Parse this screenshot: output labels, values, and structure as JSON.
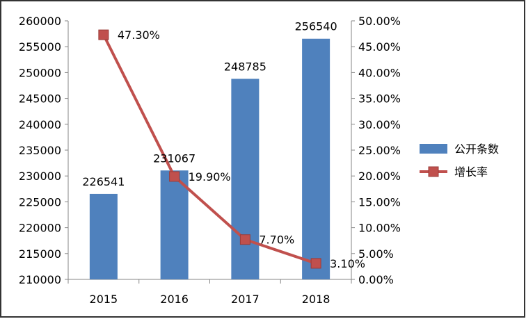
{
  "chart_data": {
    "type": "bar",
    "categories": [
      "2015",
      "2016",
      "2017",
      "2018"
    ],
    "series": [
      {
        "name": "公开条数",
        "kind": "bar",
        "axis": "left",
        "color": "#4f81bd",
        "values": [
          226541,
          231067,
          248785,
          256540
        ],
        "labels": [
          "226541",
          "231067",
          "248785",
          "256540"
        ]
      },
      {
        "name": "增长率",
        "kind": "line",
        "axis": "right",
        "color": "#c0504d",
        "values": [
          47.3,
          19.9,
          7.7,
          3.1
        ],
        "labels": [
          "47.30%",
          "19.90%",
          "7.70%",
          "3.10%"
        ]
      }
    ],
    "y_left": {
      "min": 210000,
      "max": 260000,
      "step": 5000,
      "tick_labels": [
        "210000",
        "215000",
        "220000",
        "225000",
        "230000",
        "235000",
        "240000",
        "245000",
        "250000",
        "255000",
        "260000"
      ]
    },
    "y_right": {
      "min": 0,
      "max": 50,
      "step": 5,
      "tick_labels": [
        "0.00%",
        "5.00%",
        "10.00%",
        "15.00%",
        "20.00%",
        "25.00%",
        "30.00%",
        "35.00%",
        "40.00%",
        "45.00%",
        "50.00%"
      ]
    },
    "grid": false,
    "legend": "right",
    "title": ""
  }
}
